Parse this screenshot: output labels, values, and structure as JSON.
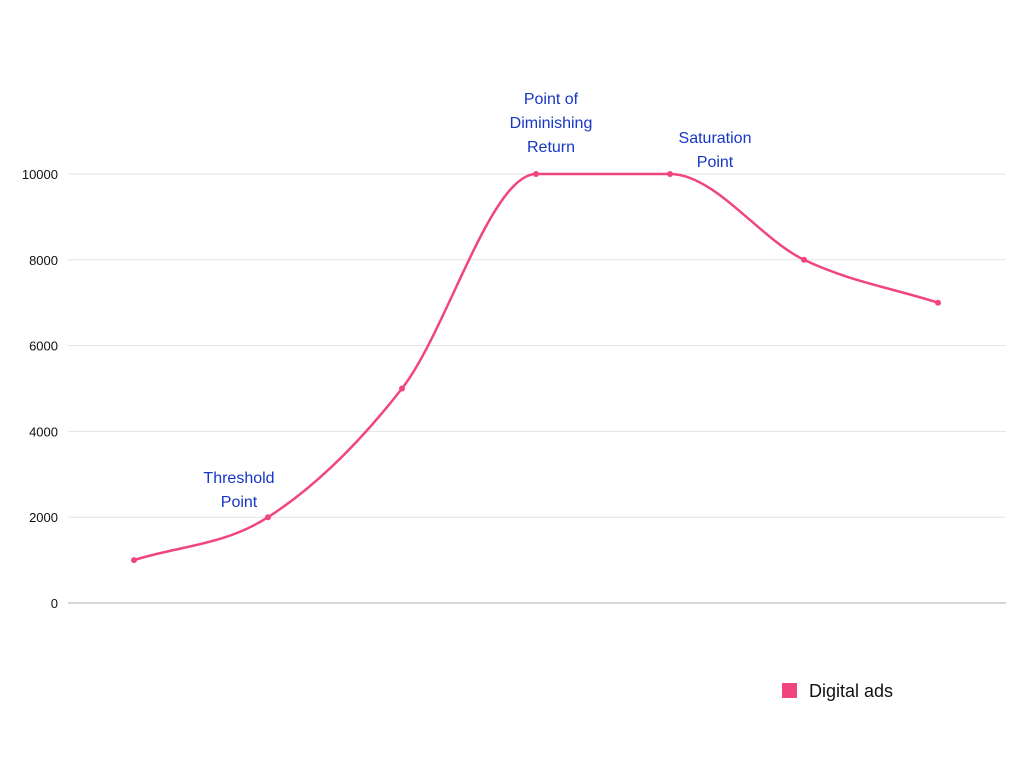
{
  "chart_data": {
    "type": "line",
    "x": [
      1,
      2,
      3,
      4,
      5,
      6,
      7
    ],
    "series": [
      {
        "name": "Digital ads",
        "values": [
          1000,
          2000,
          5000,
          10000,
          10000,
          8000,
          7000
        ],
        "color": "#f0457f"
      }
    ],
    "ylim": [
      0,
      10000
    ],
    "yticks": [
      "0",
      "2000",
      "4000",
      "6000",
      "8000",
      "10000"
    ],
    "ytick_values": [
      0,
      2000,
      4000,
      6000,
      8000,
      10000
    ],
    "grid": true,
    "smooth": true,
    "legend": {
      "position": "bottom-right",
      "label": "Digital ads"
    },
    "annotation_color": "#1636c4",
    "annotations": [
      {
        "point_index": 1,
        "lines": [
          "Threshold",
          "Point"
        ]
      },
      {
        "point_index": 3,
        "lines": [
          "Point of",
          "Diminishing",
          "Return"
        ]
      },
      {
        "point_index": 4,
        "lines": [
          "Saturation",
          "Point"
        ]
      }
    ]
  }
}
